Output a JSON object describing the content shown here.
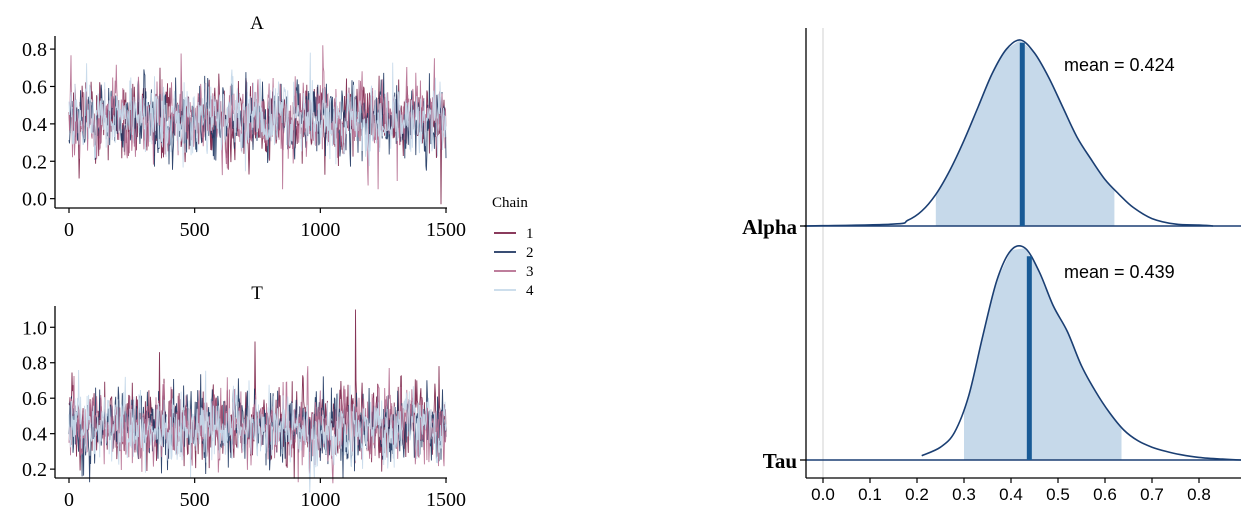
{
  "colors": {
    "chain": [
      "#7a1f45",
      "#1d3561",
      "#b46c8e",
      "#c6d9ea"
    ],
    "density_line": "#1b3f73",
    "density_fill": "#c6d9ea",
    "density_mean": "#185a96",
    "zero_line": "#dcdcdc",
    "axis": "#000000"
  },
  "legend": {
    "title": "Chain",
    "items": [
      "1",
      "2",
      "3",
      "4"
    ]
  },
  "chart_data": [
    {
      "type": "line",
      "title": "A",
      "xlabel": "",
      "ylabel": "",
      "xlim": [
        0,
        1500
      ],
      "ylim": [
        -0.05,
        0.87
      ],
      "xticks": [
        0,
        500,
        1000,
        1500
      ],
      "yticks": [
        0.0,
        0.2,
        0.4,
        0.6,
        0.8
      ],
      "ytick_labels": [
        "0.0",
        "0.2",
        "0.4",
        "0.6",
        "0.8"
      ],
      "n_iter": 1500,
      "trace_center": 0.43,
      "trace_band": [
        0.25,
        0.65
      ],
      "notable_values": [
        {
          "x": 850,
          "y": 0.05
        },
        {
          "x": 1480,
          "y": -0.03
        },
        {
          "x": 1010,
          "y": 0.82
        },
        {
          "x": 1230,
          "y": 0.05
        }
      ],
      "series": [
        {
          "name": "1"
        },
        {
          "name": "2"
        },
        {
          "name": "3"
        },
        {
          "name": "4"
        }
      ]
    },
    {
      "type": "line",
      "title": "T",
      "xlabel": "",
      "ylabel": "",
      "xlim": [
        0,
        1500
      ],
      "ylim": [
        0.15,
        1.12
      ],
      "xticks": [
        0,
        500,
        1000,
        1500
      ],
      "yticks": [
        0.2,
        0.4,
        0.6,
        0.8,
        1.0
      ],
      "ytick_labels": [
        "0.2",
        "0.4",
        "0.6",
        "0.8",
        "1.0"
      ],
      "n_iter": 1500,
      "trace_center": 0.44,
      "trace_band": [
        0.27,
        0.7
      ],
      "notable_values": [
        {
          "x": 1140,
          "y": 1.1
        },
        {
          "x": 740,
          "y": 0.92
        },
        {
          "x": 360,
          "y": 0.86
        }
      ],
      "series": [
        {
          "name": "1"
        },
        {
          "name": "2"
        },
        {
          "name": "3"
        },
        {
          "name": "4"
        }
      ]
    },
    {
      "type": "area",
      "title": "",
      "xlim": [
        -0.04,
        0.89
      ],
      "xticks": [
        0.0,
        0.1,
        0.2,
        0.3,
        0.4,
        0.5,
        0.6,
        0.7,
        0.8
      ],
      "xtick_labels": [
        "0.0",
        "0.1",
        "0.2",
        "0.3",
        "0.4",
        "0.5",
        "0.6",
        "0.7",
        "0.8"
      ],
      "zero_line_at": 0.0,
      "rows": [
        {
          "label": "Alpha",
          "mean": 0.424,
          "mean_label": "mean = 0.424",
          "interval": [
            0.24,
            0.62
          ],
          "density": {
            "x": [
              -0.04,
              0.15,
              0.18,
              0.21,
              0.24,
              0.27,
              0.3,
              0.33,
              0.36,
              0.39,
              0.42,
              0.45,
              0.48,
              0.51,
              0.54,
              0.57,
              0.6,
              0.63,
              0.66,
              0.7,
              0.75,
              0.8,
              0.83
            ],
            "y": [
              0,
              0.01,
              0.03,
              0.08,
              0.17,
              0.3,
              0.46,
              0.64,
              0.82,
              0.95,
              1.0,
              0.93,
              0.8,
              0.64,
              0.48,
              0.36,
              0.25,
              0.17,
              0.1,
              0.04,
              0.01,
              0.005,
              0
            ]
          }
        },
        {
          "label": "Tau",
          "mean": 0.439,
          "mean_label": "mean = 0.439",
          "interval": [
            0.3,
            0.635
          ],
          "density": {
            "x": [
              0.21,
              0.25,
              0.28,
              0.31,
              0.34,
              0.37,
              0.4,
              0.43,
              0.46,
              0.49,
              0.52,
              0.55,
              0.58,
              0.61,
              0.64,
              0.67,
              0.7,
              0.73,
              0.76,
              0.8,
              0.85,
              0.89
            ],
            "y": [
              0.02,
              0.06,
              0.13,
              0.3,
              0.58,
              0.84,
              0.98,
              0.99,
              0.88,
              0.72,
              0.6,
              0.44,
              0.32,
              0.22,
              0.14,
              0.09,
              0.06,
              0.04,
              0.025,
              0.012,
              0.004,
              0
            ]
          }
        }
      ]
    }
  ]
}
